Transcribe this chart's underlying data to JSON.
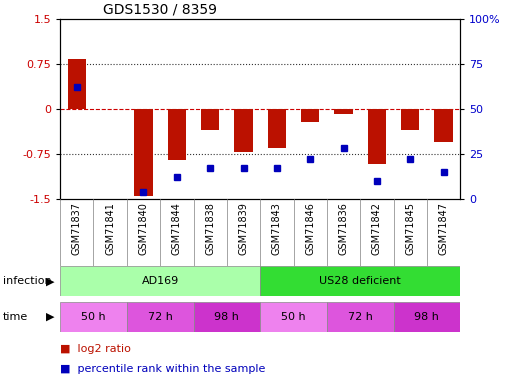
{
  "title": "GDS1530 / 8359",
  "samples": [
    "GSM71837",
    "GSM71841",
    "GSM71840",
    "GSM71844",
    "GSM71838",
    "GSM71839",
    "GSM71843",
    "GSM71846",
    "GSM71836",
    "GSM71842",
    "GSM71845",
    "GSM71847"
  ],
  "log2_ratio": [
    0.83,
    0.0,
    -1.45,
    -0.85,
    -0.35,
    -0.72,
    -0.65,
    -0.22,
    -0.08,
    -0.92,
    -0.35,
    -0.55
  ],
  "percentile_rank": [
    62,
    null,
    4,
    12,
    17,
    17,
    17,
    22,
    28,
    10,
    22,
    15
  ],
  "infection_groups": [
    {
      "label": "AD169",
      "start": 0,
      "end": 6,
      "color": "#AAFFAA"
    },
    {
      "label": "US28 deficient",
      "start": 6,
      "end": 12,
      "color": "#33DD33"
    }
  ],
  "time_groups": [
    {
      "label": "50 h",
      "start": 0,
      "end": 2,
      "color": "#EE82EE"
    },
    {
      "label": "72 h",
      "start": 2,
      "end": 4,
      "color": "#DD55DD"
    },
    {
      "label": "98 h",
      "start": 4,
      "end": 6,
      "color": "#CC33CC"
    },
    {
      "label": "50 h",
      "start": 6,
      "end": 8,
      "color": "#EE82EE"
    },
    {
      "label": "72 h",
      "start": 8,
      "end": 10,
      "color": "#DD55DD"
    },
    {
      "label": "98 h",
      "start": 10,
      "end": 12,
      "color": "#CC33CC"
    }
  ],
  "bar_color": "#BB1100",
  "dot_color": "#0000BB",
  "ylim_left": [
    -1.5,
    1.5
  ],
  "ylim_right": [
    0,
    100
  ],
  "yticks_left": [
    -1.5,
    -0.75,
    0,
    0.75,
    1.5
  ],
  "ytick_labels_left": [
    "-1.5",
    "-0.75",
    "0",
    "0.75",
    "1.5"
  ],
  "yticks_right": [
    0,
    25,
    50,
    75,
    100
  ],
  "ytick_labels_right": [
    "0",
    "25",
    "50",
    "75",
    "100%"
  ],
  "bar_width": 0.55,
  "infection_label": "infection",
  "time_label": "time",
  "legend_items": [
    {
      "color": "#BB1100",
      "label": "log2 ratio"
    },
    {
      "color": "#0000BB",
      "label": "percentile rank within the sample"
    }
  ],
  "hline_dotted_color": "#333333",
  "hline_zero_color": "#CC0000",
  "title_fontsize": 10,
  "axis_fontsize": 8,
  "sample_fontsize": 7,
  "legend_fontsize": 8
}
